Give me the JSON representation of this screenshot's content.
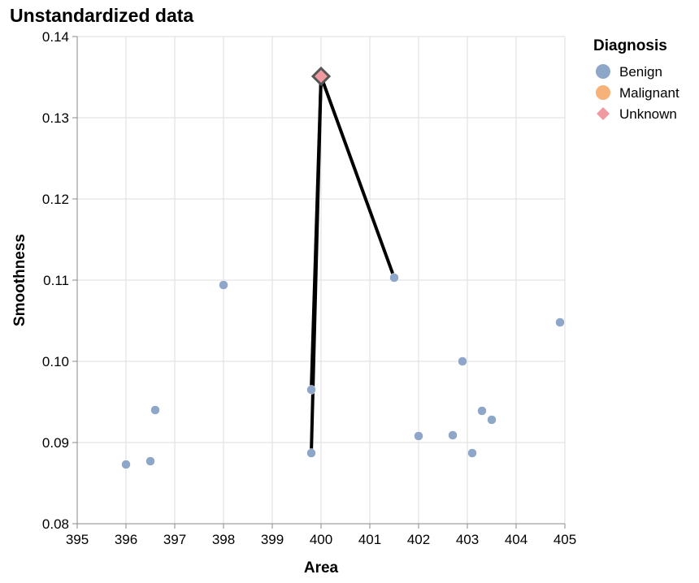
{
  "colors": {
    "benign": "#8ea7c8",
    "malignant": "#f7b27a",
    "unknown": "#ee9aa0",
    "neighbor_line": "#000000",
    "grid": "#dddddd",
    "axis": "#888888"
  },
  "chart_data": {
    "type": "scatter",
    "title": "Unstandardized data",
    "xlabel": "Area",
    "ylabel": "Smoothness",
    "xlim": [
      395,
      405
    ],
    "ylim": [
      0.08,
      0.14
    ],
    "xticks": [
      395,
      396,
      397,
      398,
      399,
      400,
      401,
      402,
      403,
      404,
      405
    ],
    "yticks": [
      0.08,
      0.09,
      0.1,
      0.11,
      0.12,
      0.13,
      0.14
    ],
    "xtick_labels": [
      "395",
      "396",
      "397",
      "398",
      "399",
      "400",
      "401",
      "402",
      "403",
      "404",
      "405"
    ],
    "ytick_labels": [
      "0.08",
      "0.09",
      "0.10",
      "0.11",
      "0.12",
      "0.13",
      "0.14"
    ],
    "grid": true,
    "legend": {
      "title": "Diagnosis",
      "position": "top-right",
      "entries": [
        {
          "label": "Benign",
          "shape": "circle",
          "color_key": "benign"
        },
        {
          "label": "Malignant",
          "shape": "circle",
          "color_key": "malignant"
        },
        {
          "label": "Unknown",
          "shape": "diamond",
          "color_key": "unknown"
        }
      ]
    },
    "series": [
      {
        "name": "Benign",
        "points": [
          {
            "x": 396.0,
            "y": 0.0873
          },
          {
            "x": 396.5,
            "y": 0.0877
          },
          {
            "x": 396.6,
            "y": 0.094
          },
          {
            "x": 398.0,
            "y": 0.1094
          },
          {
            "x": 399.8,
            "y": 0.0965
          },
          {
            "x": 399.8,
            "y": 0.0887
          },
          {
            "x": 401.5,
            "y": 0.1103
          },
          {
            "x": 402.0,
            "y": 0.0908
          },
          {
            "x": 402.7,
            "y": 0.0909
          },
          {
            "x": 402.9,
            "y": 0.1
          },
          {
            "x": 403.1,
            "y": 0.0887
          },
          {
            "x": 403.3,
            "y": 0.0939
          },
          {
            "x": 403.5,
            "y": 0.0928
          },
          {
            "x": 404.9,
            "y": 0.1048
          }
        ]
      },
      {
        "name": "Unknown",
        "points": [
          {
            "x": 400.0,
            "y": 0.1351
          }
        ]
      }
    ],
    "neighbor_lines": [
      {
        "x1": 400.0,
        "y1": 0.1351,
        "x2": 401.5,
        "y2": 0.1103
      },
      {
        "x1": 400.0,
        "y1": 0.1351,
        "x2": 399.8,
        "y2": 0.0965
      },
      {
        "x1": 400.0,
        "y1": 0.1351,
        "x2": 399.8,
        "y2": 0.0887
      }
    ]
  }
}
